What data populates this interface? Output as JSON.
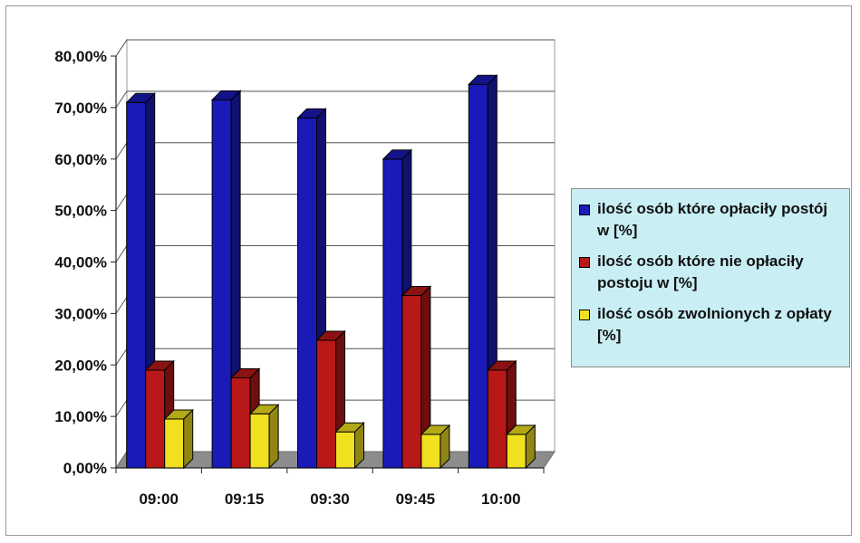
{
  "chart_data": {
    "type": "bar",
    "categories": [
      "09:00",
      "09:15",
      "09:30",
      "09:45",
      "10:00"
    ],
    "series": [
      {
        "name": "ilość osób które opłaciły postój w [%]",
        "values": [
          71.0,
          71.5,
          68.0,
          60.0,
          74.5
        ],
        "color": "#1a1ab8"
      },
      {
        "name": "ilość osób które nie opłaciły postoju w [%]",
        "values": [
          19.0,
          17.5,
          24.8,
          33.5,
          19.0
        ],
        "color": "#b81818"
      },
      {
        "name": "ilość osób zwolnionych z opłaty [%]",
        "values": [
          9.5,
          10.5,
          7.0,
          6.5,
          6.5
        ],
        "color": "#f0e020"
      }
    ],
    "ylim": [
      0,
      80
    ],
    "yticks": [
      "0,00%",
      "10,00%",
      "20,00%",
      "30,00%",
      "40,00%",
      "50,00%",
      "60,00%",
      "70,00%",
      "80,00%"
    ],
    "grid": true,
    "legend_position": "right",
    "style": "3d-clustered-column",
    "wall_color": "#ffffff",
    "floor_color": "#8c8c8c"
  }
}
